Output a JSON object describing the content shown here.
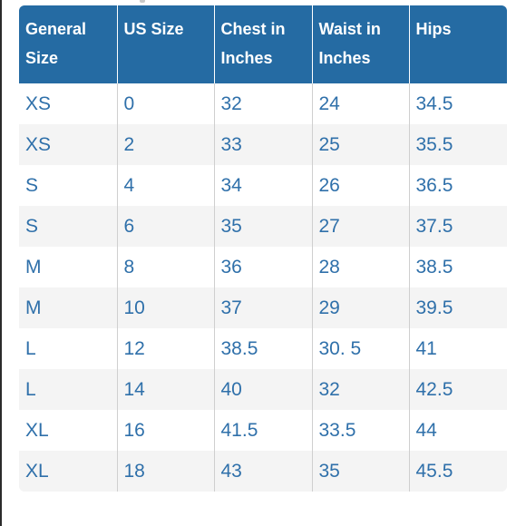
{
  "table": {
    "headers": [
      "General Size",
      "US Size",
      "Chest in Inches",
      "Waist in Inches",
      "Hips"
    ],
    "rows": [
      [
        "XS",
        "0",
        "32",
        "24",
        "34.5"
      ],
      [
        "XS",
        "2",
        "33",
        "25",
        "35.5"
      ],
      [
        "S",
        "4",
        "34",
        "26",
        "36.5"
      ],
      [
        "S",
        "6",
        "35",
        "27",
        "37.5"
      ],
      [
        "M",
        "8",
        "36",
        "28",
        "38.5"
      ],
      [
        "M",
        "10",
        "37",
        "29",
        "39.5"
      ],
      [
        "L",
        "12",
        "38.5",
        "30. 5",
        "41"
      ],
      [
        "L",
        "14",
        "40",
        "32",
        "42.5"
      ],
      [
        "XL",
        "16",
        "41.5",
        "33.5",
        "44"
      ],
      [
        "XL",
        "18",
        "43",
        "35",
        "45.5"
      ]
    ]
  },
  "colors": {
    "header_background": "#256ba3",
    "header_text": "#ffffff",
    "cell_text": "#2f70aa",
    "stripe_background": "#f4f4f4"
  }
}
